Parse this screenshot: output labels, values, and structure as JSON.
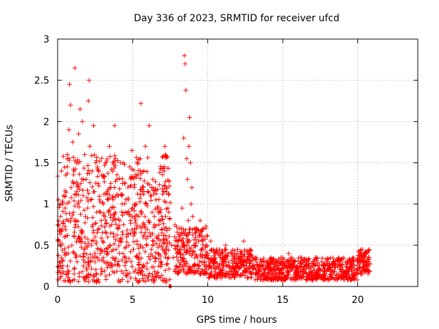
{
  "chart_data": {
    "type": "scatter",
    "title": "Day 336 of 2023, SRMTID for receiver ufcd",
    "xlabel": "GPS time / hours",
    "ylabel": "SRMTID / TECUs",
    "xlim": [
      0,
      24
    ],
    "ylim": [
      0,
      3
    ],
    "xticks": [
      0,
      5,
      10,
      15,
      20
    ],
    "yticks": [
      0,
      0.5,
      1,
      1.5,
      2,
      2.5,
      3
    ],
    "xtick_labels": [
      "0",
      "5",
      "10",
      "15",
      "20"
    ],
    "ytick_labels": [
      "0",
      "0.5",
      "1",
      "1.5",
      "2",
      "2.5",
      "3"
    ],
    "grid": true,
    "marker": "+",
    "color": "#ff0000",
    "series": [
      {
        "name": "SRMTID",
        "points": [
          [
            0.05,
            1.05
          ],
          [
            0.1,
            0.55
          ],
          [
            0.12,
            0.3
          ],
          [
            0.15,
            0.1
          ],
          [
            0.2,
            0.85
          ],
          [
            0.25,
            1.4
          ],
          [
            0.3,
            0.7
          ],
          [
            0.35,
            0.25
          ],
          [
            0.4,
            1.1
          ],
          [
            0.45,
            0.6
          ],
          [
            0.5,
            0.95
          ],
          [
            0.55,
            1.35
          ],
          [
            0.6,
            0.4
          ],
          [
            0.65,
            1.6
          ],
          [
            0.7,
            0.8
          ],
          [
            0.75,
            1.9
          ],
          [
            0.8,
            2.45
          ],
          [
            0.85,
            2.2
          ],
          [
            0.9,
            1.2
          ],
          [
            0.95,
            0.5
          ],
          [
            1.0,
            1.75
          ],
          [
            1.05,
            0.9
          ],
          [
            1.1,
            1.4
          ],
          [
            1.15,
            2.65
          ],
          [
            1.2,
            0.75
          ],
          [
            1.25,
            1.5
          ],
          [
            1.3,
            0.3
          ],
          [
            1.35,
            1.0
          ],
          [
            1.4,
            1.85
          ],
          [
            1.45,
            0.55
          ],
          [
            1.5,
            2.15
          ],
          [
            1.55,
            1.25
          ],
          [
            1.6,
            0.65
          ],
          [
            1.65,
            2.0
          ],
          [
            1.7,
            1.1
          ],
          [
            1.75,
            0.4
          ],
          [
            1.8,
            1.6
          ],
          [
            1.85,
            0.85
          ],
          [
            1.9,
            1.3
          ],
          [
            1.95,
            0.2
          ],
          [
            2.0,
            0.95
          ],
          [
            2.05,
            2.25
          ],
          [
            2.1,
            2.5
          ],
          [
            2.15,
            1.7
          ],
          [
            2.2,
            1.05
          ],
          [
            2.25,
            0.5
          ],
          [
            2.3,
            1.4
          ],
          [
            2.35,
            0.75
          ],
          [
            2.4,
            1.95
          ],
          [
            2.45,
            1.15
          ],
          [
            2.5,
            0.6
          ],
          [
            2.55,
            1.5
          ],
          [
            2.6,
            0.9
          ],
          [
            2.65,
            0.35
          ],
          [
            2.7,
            1.25
          ],
          [
            2.75,
            0.7
          ],
          [
            2.8,
            1.05
          ],
          [
            2.85,
            0.45
          ],
          [
            2.9,
            0.8
          ],
          [
            2.95,
            1.35
          ],
          [
            3.0,
            0.55
          ],
          [
            3.05,
            1.0
          ],
          [
            3.1,
            0.3
          ],
          [
            3.15,
            0.85
          ],
          [
            3.2,
            1.5
          ],
          [
            3.25,
            0.65
          ],
          [
            3.3,
            1.15
          ],
          [
            3.35,
            0.4
          ],
          [
            3.4,
            0.9
          ],
          [
            3.45,
            1.7
          ],
          [
            3.5,
            0.5
          ],
          [
            3.55,
            1.2
          ],
          [
            3.6,
            0.75
          ],
          [
            3.65,
            0.35
          ],
          [
            3.7,
            1.05
          ],
          [
            3.75,
            0.6
          ],
          [
            3.8,
            1.95
          ],
          [
            3.85,
            0.9
          ],
          [
            3.9,
            0.45
          ],
          [
            3.95,
            1.3
          ],
          [
            4.0,
            0.7
          ],
          [
            4.05,
            1.1
          ],
          [
            4.1,
            0.25
          ],
          [
            4.15,
            0.8
          ],
          [
            4.2,
            1.5
          ],
          [
            4.25,
            0.55
          ],
          [
            4.3,
            1.0
          ],
          [
            4.35,
            0.4
          ],
          [
            4.4,
            0.75
          ],
          [
            4.45,
            1.25
          ],
          [
            4.5,
            0.35
          ],
          [
            4.55,
            0.9
          ],
          [
            4.6,
            0.6
          ],
          [
            4.65,
            0.15
          ],
          [
            4.7,
            1.05
          ],
          [
            4.75,
            0.5
          ],
          [
            4.8,
            1.45
          ],
          [
            4.85,
            0.8
          ],
          [
            4.9,
            0.3
          ],
          [
            4.95,
            1.65
          ],
          [
            5.0,
            0.95
          ],
          [
            5.05,
            0.45
          ],
          [
            5.1,
            1.2
          ],
          [
            5.15,
            0.7
          ],
          [
            5.2,
            0.2
          ],
          [
            5.25,
            1.0
          ],
          [
            5.3,
            0.55
          ],
          [
            5.35,
            1.35
          ],
          [
            5.4,
            0.85
          ],
          [
            5.45,
            0.4
          ],
          [
            5.5,
            1.55
          ],
          [
            5.55,
            2.22
          ],
          [
            5.6,
            0.9
          ],
          [
            5.65,
            1.15
          ],
          [
            5.7,
            0.6
          ],
          [
            5.75,
            1.4
          ],
          [
            5.8,
            0.75
          ],
          [
            5.85,
            1.7
          ],
          [
            5.9,
            1.0
          ],
          [
            5.95,
            0.5
          ],
          [
            6.0,
            1.25
          ],
          [
            6.05,
            0.8
          ],
          [
            6.1,
            1.95
          ],
          [
            6.15,
            0.65
          ],
          [
            6.2,
            1.1
          ],
          [
            6.25,
            0.45
          ],
          [
            6.3,
            0.9
          ],
          [
            6.35,
            1.3
          ],
          [
            6.4,
            0.55
          ],
          [
            6.45,
            0.85
          ],
          [
            6.5,
            0.35
          ],
          [
            6.55,
            1.05
          ],
          [
            6.6,
            0.6
          ],
          [
            6.65,
            0.95
          ],
          [
            6.7,
            0.4
          ],
          [
            6.75,
            0.75
          ],
          [
            6.8,
            0.5
          ],
          [
            6.85,
            0.9
          ],
          [
            6.9,
            0.3
          ],
          [
            6.95,
            0.65
          ],
          [
            7.0,
            0.45
          ],
          [
            7.05,
            1.15
          ],
          [
            7.1,
            1.4
          ],
          [
            7.15,
            1.7
          ],
          [
            7.2,
            0.85
          ],
          [
            7.25,
            1.2
          ],
          [
            7.3,
            0.55
          ],
          [
            7.35,
            0.95
          ],
          [
            7.4,
            0.35
          ],
          [
            7.45,
            0.7
          ],
          [
            7.5,
            0.0
          ],
          [
            7.6,
            0.5
          ],
          [
            7.7,
            0.35
          ],
          [
            7.8,
            0.6
          ],
          [
            7.9,
            0.25
          ],
          [
            8.0,
            0.55
          ],
          [
            8.1,
            0.7
          ],
          [
            8.2,
            0.4
          ],
          [
            8.3,
            0.95
          ],
          [
            8.4,
            1.8
          ],
          [
            8.45,
            2.8
          ],
          [
            8.5,
            2.7
          ],
          [
            8.55,
            2.38
          ],
          [
            8.6,
            1.55
          ],
          [
            8.65,
            1.3
          ],
          [
            8.7,
            0.8
          ],
          [
            8.75,
            1.7
          ],
          [
            8.8,
            2.05
          ],
          [
            8.85,
            1.5
          ],
          [
            8.9,
            1.0
          ],
          [
            8.95,
            1.2
          ],
          [
            9.0,
            0.85
          ],
          [
            9.1,
            0.5
          ],
          [
            9.2,
            0.65
          ],
          [
            9.3,
            0.35
          ],
          [
            9.4,
            0.55
          ],
          [
            9.5,
            0.8
          ],
          [
            9.6,
            0.45
          ],
          [
            9.7,
            0.6
          ],
          [
            9.8,
            0.3
          ],
          [
            9.9,
            0.5
          ],
          [
            10.0,
            0.4
          ],
          [
            10.2,
            0.55
          ],
          [
            10.4,
            0.3
          ],
          [
            10.6,
            0.45
          ],
          [
            10.8,
            0.2
          ],
          [
            11.0,
            0.35
          ],
          [
            11.2,
            0.5
          ],
          [
            11.4,
            0.25
          ],
          [
            11.6,
            0.4
          ],
          [
            11.8,
            0.3
          ],
          [
            12.0,
            0.45
          ],
          [
            12.2,
            0.35
          ],
          [
            12.4,
            0.55
          ],
          [
            12.6,
            0.3
          ],
          [
            12.8,
            0.4
          ],
          [
            13.0,
            0.25
          ],
          [
            13.2,
            0.35
          ],
          [
            13.4,
            0.2
          ],
          [
            13.6,
            0.3
          ],
          [
            13.8,
            0.15
          ],
          [
            14.0,
            0.25
          ],
          [
            14.2,
            0.35
          ],
          [
            14.4,
            0.2
          ],
          [
            14.6,
            0.3
          ],
          [
            14.8,
            0.15
          ],
          [
            15.0,
            0.35
          ],
          [
            15.2,
            0.25
          ],
          [
            15.4,
            0.4
          ],
          [
            15.6,
            0.2
          ],
          [
            15.8,
            0.3
          ],
          [
            16.0,
            0.25
          ],
          [
            16.2,
            0.35
          ],
          [
            16.4,
            0.2
          ],
          [
            16.6,
            0.3
          ],
          [
            16.8,
            0.15
          ],
          [
            17.0,
            0.25
          ],
          [
            17.2,
            0.35
          ],
          [
            17.4,
            0.2
          ],
          [
            17.6,
            0.3
          ],
          [
            17.8,
            0.15
          ],
          [
            18.0,
            0.25
          ],
          [
            18.2,
            0.2
          ],
          [
            18.4,
            0.3
          ],
          [
            18.6,
            0.15
          ],
          [
            18.8,
            0.25
          ],
          [
            19.0,
            0.2
          ],
          [
            19.2,
            0.3
          ],
          [
            19.4,
            0.15
          ],
          [
            19.6,
            0.25
          ],
          [
            19.8,
            0.2
          ],
          [
            20.0,
            0.3
          ],
          [
            20.1,
            0.35
          ],
          [
            20.2,
            0.4
          ],
          [
            20.3,
            0.45
          ],
          [
            20.4,
            0.38
          ],
          [
            20.5,
            0.3
          ],
          [
            20.6,
            0.25
          ],
          [
            20.7,
            0.3
          ],
          [
            20.8,
            0.28
          ]
        ]
      }
    ],
    "bands": [
      {
        "x0": 0.0,
        "x1": 7.5,
        "ylo": 0.05,
        "yhi": 1.6,
        "count": 700
      },
      {
        "x0": 7.8,
        "x1": 10.0,
        "ylo": 0.15,
        "yhi": 0.75,
        "count": 200
      },
      {
        "x0": 10.0,
        "x1": 13.0,
        "ylo": 0.1,
        "yhi": 0.45,
        "count": 260
      },
      {
        "x0": 13.0,
        "x1": 20.0,
        "ylo": 0.08,
        "yhi": 0.35,
        "count": 620
      },
      {
        "x0": 20.0,
        "x1": 20.8,
        "ylo": 0.15,
        "yhi": 0.45,
        "count": 80
      }
    ]
  }
}
